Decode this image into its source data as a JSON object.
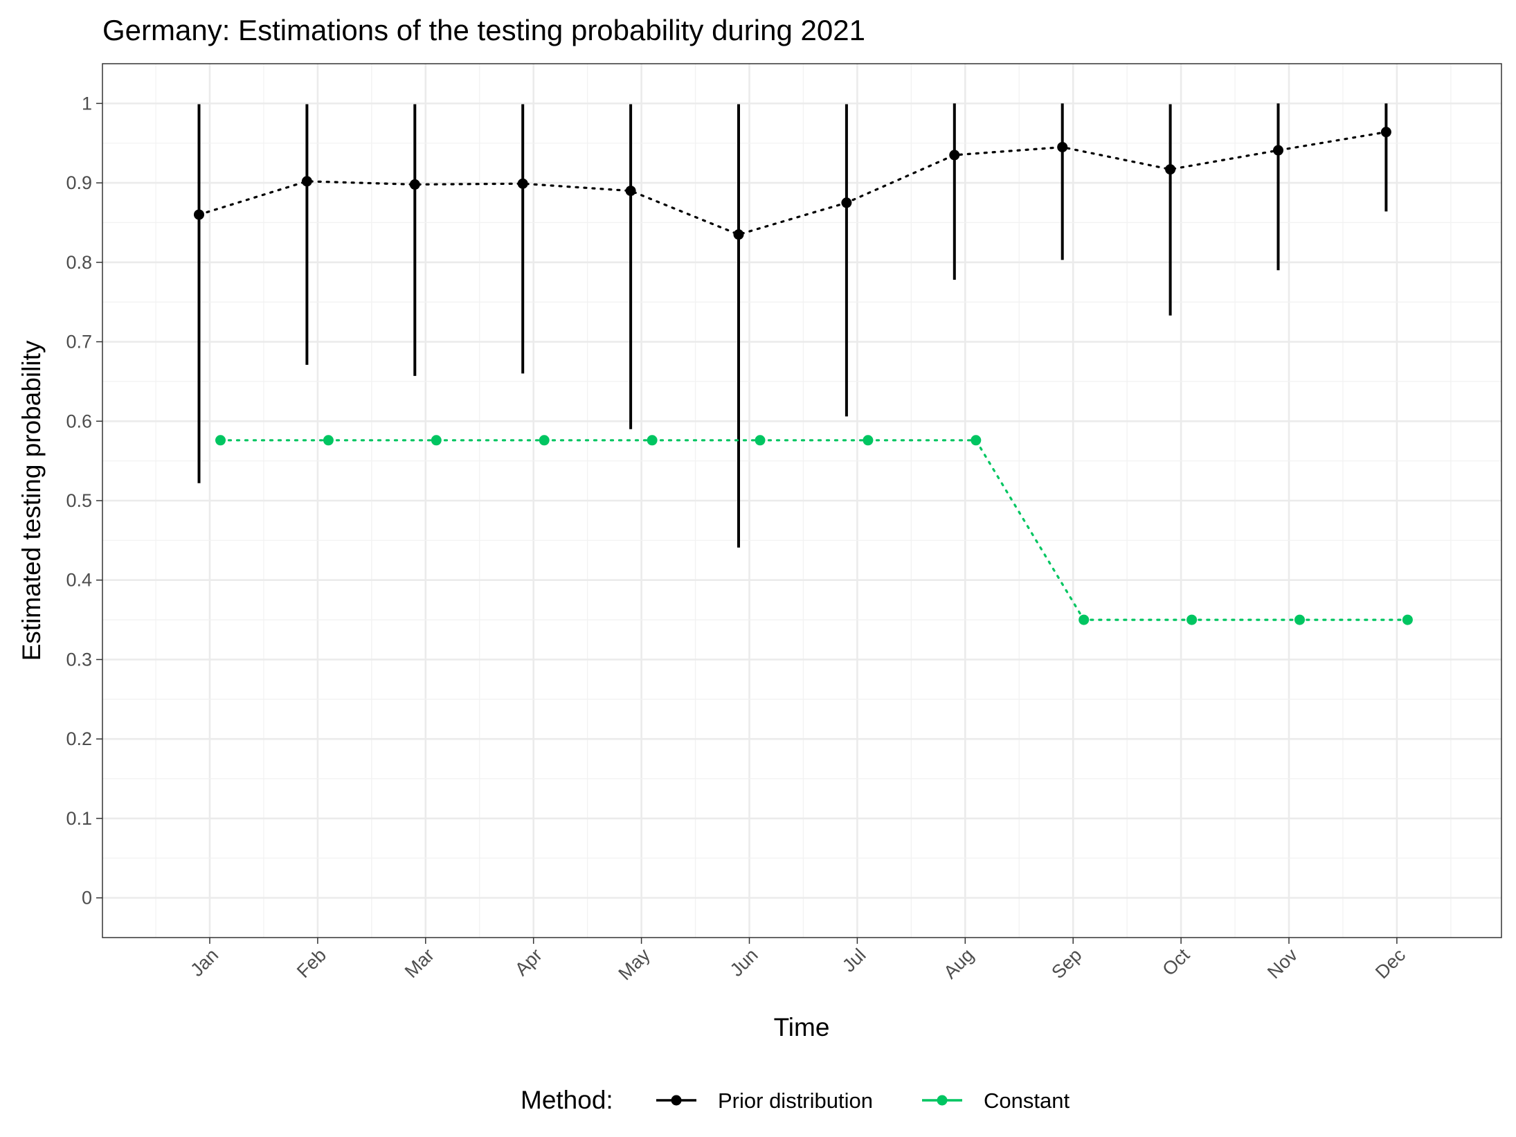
{
  "chart_data": {
    "type": "line",
    "title": "Germany: Estimations of the testing probability during 2021",
    "xlabel": "Time",
    "ylabel": "Estimated testing probability",
    "categories": [
      "Jan",
      "Feb",
      "Mar",
      "Apr",
      "May",
      "Jun",
      "Jul",
      "Aug",
      "Sep",
      "Oct",
      "Nov",
      "Dec"
    ],
    "ylim": [
      -0.05,
      1.05
    ],
    "yticks": [
      "0",
      "0.1",
      "0.2",
      "0.3",
      "0.4",
      "0.5",
      "0.6",
      "0.7",
      "0.8",
      "0.9",
      "1"
    ],
    "grid": true,
    "legend": {
      "title": "Method:",
      "position": "bottom",
      "entries": [
        "Prior distribution",
        "Constant"
      ]
    },
    "series": [
      {
        "name": "Prior distribution",
        "color": "#000000",
        "line_style": "dotted",
        "values": [
          0.86,
          0.902,
          0.898,
          0.899,
          0.89,
          0.835,
          0.875,
          0.935,
          0.945,
          0.917,
          0.941,
          0.964
        ],
        "lower": [
          0.522,
          0.671,
          0.657,
          0.66,
          0.59,
          0.441,
          0.606,
          0.778,
          0.803,
          0.733,
          0.79,
          0.864
        ],
        "upper": [
          0.999,
          0.999,
          0.999,
          0.999,
          0.999,
          0.999,
          0.999,
          1.0,
          1.0,
          0.999,
          1.0,
          1.0
        ]
      },
      {
        "name": "Constant",
        "color": "#00c561",
        "line_style": "dotted",
        "values": [
          0.576,
          0.576,
          0.576,
          0.576,
          0.576,
          0.576,
          0.576,
          0.576,
          0.35,
          0.35,
          0.35,
          0.35
        ]
      }
    ]
  }
}
